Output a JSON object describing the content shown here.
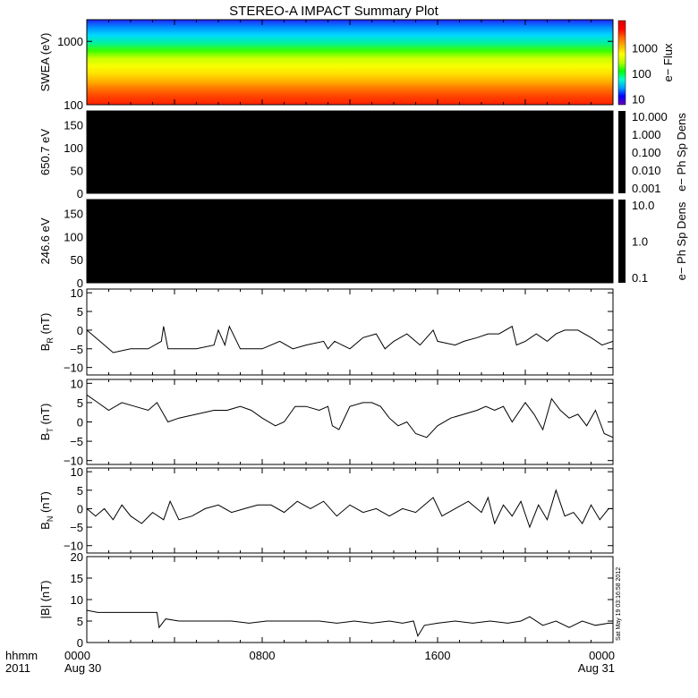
{
  "title": "STEREO-A IMPACT Summary Plot",
  "stamp": "Sat May 19 03:16:58 2012",
  "time_axis": {
    "row1": [
      "0000",
      "0800",
      "1600",
      "0000"
    ],
    "row2": [
      "Aug 30",
      "",
      "",
      "Aug 31"
    ],
    "corner_row1": "hhmm",
    "corner_row2": "2011",
    "range_hours": [
      0,
      24
    ],
    "tick_hours": [
      0,
      8,
      16,
      24
    ]
  },
  "chart_data": [
    {
      "type": "heatmap",
      "ylabel": "SWEA (eV)",
      "y_scale": "log",
      "ylim": [
        100,
        2200
      ],
      "y_ticks": [
        100,
        1000
      ],
      "y_tick_labels": [
        "100",
        "1000"
      ],
      "colorbar": {
        "label": "e− Flux",
        "scale": "log",
        "range": [
          6,
          12000
        ],
        "ticks": [
          10,
          100,
          1000
        ],
        "tick_labels": [
          "10",
          "100",
          "1000"
        ],
        "colormap": [
          "#6b00b2",
          "#0000ff",
          "#00a0ff",
          "#00ffc8",
          "#00ff00",
          "#b4ff00",
          "#ffff00",
          "#ffb400",
          "#ff6400",
          "#ff0000",
          "#dc0000"
        ]
      },
      "energy_bands_ev": [
        2200,
        1900,
        1500,
        1200,
        900,
        650,
        450,
        300,
        220,
        160,
        120,
        100
      ],
      "band_colors": [
        "#2222ff",
        "#0090ff",
        "#00d8ff",
        "#00f0a0",
        "#38ff00",
        "#c8ff00",
        "#f8ff00",
        "#ffe000",
        "#ffb000",
        "#ff7000",
        "#ff4000",
        "#ff2000"
      ]
    },
    {
      "type": "heatmap",
      "ylabel": "650.7 eV",
      "ylim": [
        0,
        180
      ],
      "y_ticks": [
        0,
        50,
        100,
        150
      ],
      "y_tick_labels": [
        "0",
        "50",
        "100",
        "150"
      ],
      "fill": "#000000",
      "colorbar": {
        "label": "e− Ph Sp Dens",
        "scale": "log",
        "ticks": [
          0.001,
          0.01,
          0.1,
          1.0,
          10.0
        ],
        "tick_labels": [
          "0.001",
          "0.010",
          "0.100",
          "1.000",
          "10.000"
        ],
        "fill": "#000000"
      }
    },
    {
      "type": "heatmap",
      "ylabel": "246.6 eV",
      "ylim": [
        0,
        180
      ],
      "y_ticks": [
        0,
        50,
        100,
        150
      ],
      "y_tick_labels": [
        "0",
        "50",
        "100",
        "150"
      ],
      "fill": "#000000",
      "colorbar": {
        "label": "e− Ph Sp Dens",
        "scale": "log",
        "ticks": [
          0.1,
          1.0,
          10.0
        ],
        "tick_labels": [
          "0.1",
          "1.0",
          "10.0"
        ],
        "fill": "#000000"
      }
    },
    {
      "type": "line",
      "ylabel": "B",
      "ylabel_sub": "R",
      "ylabel_unit": " (nT)",
      "ylim": [
        -12,
        11
      ],
      "y_ticks": [
        -10,
        -5,
        0,
        5,
        10
      ],
      "y_tick_labels": [
        "−10",
        "−5",
        "0",
        "5",
        "10"
      ],
      "x_hours": [
        0,
        0.6,
        1.2,
        2.0,
        2.8,
        3.4,
        3.5,
        3.7,
        4.2,
        5.0,
        5.8,
        6.0,
        6.3,
        6.5,
        7.0,
        7.6,
        8.0,
        8.8,
        9.4,
        10.0,
        10.8,
        11.0,
        11.3,
        12.0,
        12.6,
        13.2,
        13.6,
        14.0,
        14.6,
        15.2,
        15.8,
        16.0,
        16.8,
        17.2,
        17.8,
        18.3,
        18.8,
        19.4,
        19.6,
        20.0,
        20.5,
        21.0,
        21.4,
        21.8,
        22.4,
        23.0,
        23.5,
        24.0
      ],
      "values": [
        0,
        -3,
        -6,
        -5,
        -5,
        -3,
        1,
        -5,
        -5,
        -5,
        -4,
        0,
        -4,
        1,
        -5,
        -5,
        -5,
        -3,
        -5,
        -4,
        -3,
        -5,
        -3,
        -5,
        -2,
        -1,
        -5,
        -3,
        -1,
        -4,
        0,
        -3,
        -4,
        -3,
        -2,
        -1,
        -1,
        1,
        -4,
        -3,
        -1,
        -3,
        -1,
        0,
        0,
        -2,
        -4,
        -3
      ]
    },
    {
      "type": "line",
      "ylabel": "B",
      "ylabel_sub": "T",
      "ylabel_unit": " (nT)",
      "ylim": [
        -11,
        11
      ],
      "y_ticks": [
        -10,
        -5,
        0,
        5,
        10
      ],
      "y_tick_labels": [
        "−10",
        "−5",
        "0",
        "5",
        "10"
      ],
      "x_hours": [
        0,
        0.5,
        1.0,
        1.6,
        2.2,
        2.8,
        3.2,
        3.5,
        3.7,
        4.2,
        5.0,
        5.8,
        6.4,
        7.0,
        7.5,
        8.0,
        8.6,
        9.0,
        9.5,
        10.0,
        10.6,
        11.0,
        11.2,
        11.5,
        12.0,
        12.6,
        13.0,
        13.4,
        13.8,
        14.2,
        14.6,
        15.0,
        15.5,
        16.0,
        16.6,
        17.2,
        17.8,
        18.2,
        18.6,
        19.0,
        19.4,
        20.0,
        20.4,
        20.8,
        21.2,
        21.6,
        22.0,
        22.4,
        22.8,
        23.2,
        23.6,
        24.0
      ],
      "values": [
        7,
        5,
        3,
        5,
        4,
        3,
        5,
        2,
        0,
        1,
        2,
        3,
        3,
        4,
        3,
        1,
        -1,
        0,
        4,
        4,
        3,
        4,
        -1,
        -2,
        4,
        5,
        5,
        4,
        1,
        -1,
        0,
        -3,
        -4,
        -1,
        1,
        2,
        3,
        4,
        3,
        4,
        0,
        5,
        2,
        -2,
        6,
        3,
        1,
        2,
        -1,
        3,
        -3,
        -4
      ]
    },
    {
      "type": "line",
      "ylabel": "B",
      "ylabel_sub": "N",
      "ylabel_unit": " (nT)",
      "ylim": [
        -12,
        11
      ],
      "y_ticks": [
        -10,
        -5,
        0,
        5,
        10
      ],
      "y_tick_labels": [
        "−10",
        "−5",
        "0",
        "5",
        "10"
      ],
      "x_hours": [
        0,
        0.4,
        0.8,
        1.2,
        1.6,
        2.0,
        2.5,
        3.0,
        3.5,
        3.8,
        4.2,
        4.8,
        5.4,
        6.0,
        6.6,
        7.2,
        7.8,
        8.4,
        9.0,
        9.6,
        10.2,
        10.8,
        11.4,
        12.0,
        12.6,
        13.2,
        13.8,
        14.4,
        15.0,
        15.4,
        15.8,
        16.2,
        16.8,
        17.4,
        18.0,
        18.3,
        18.6,
        19.0,
        19.4,
        19.8,
        20.2,
        20.6,
        21.0,
        21.4,
        21.8,
        22.2,
        22.6,
        23.0,
        23.4,
        23.8,
        24.0
      ],
      "values": [
        0,
        -2,
        0,
        -3,
        1,
        -2,
        -4,
        -1,
        -3,
        2,
        -3,
        -2,
        0,
        1,
        -1,
        0,
        1,
        1,
        -1,
        2,
        0,
        2,
        -2,
        1,
        -1,
        0,
        -2,
        0,
        -1,
        1,
        3,
        -2,
        0,
        2,
        -1,
        3,
        -4,
        1,
        -2,
        2,
        -5,
        1,
        -3,
        5,
        -2,
        -1,
        -4,
        1,
        -3,
        0,
        0
      ]
    },
    {
      "type": "line",
      "ylabel": "|B| (nT)",
      "ylim": [
        0,
        20
      ],
      "y_ticks": [
        0,
        5,
        10,
        15,
        20
      ],
      "y_tick_labels": [
        "0",
        "5",
        "10",
        "15",
        "20"
      ],
      "x_hours": [
        0,
        0.5,
        1.0,
        1.6,
        2.2,
        2.8,
        3.2,
        3.3,
        3.6,
        4.2,
        5.0,
        5.8,
        6.6,
        7.4,
        8.2,
        9.0,
        9.8,
        10.6,
        11.4,
        12.2,
        13.0,
        13.8,
        14.4,
        14.9,
        15.1,
        15.4,
        16.0,
        16.8,
        17.6,
        18.4,
        19.2,
        19.8,
        20.2,
        20.8,
        21.4,
        22.0,
        22.6,
        23.2,
        23.8,
        24.0
      ],
      "values": [
        7.5,
        7,
        7,
        7,
        7,
        7,
        7,
        3.5,
        5.5,
        5,
        5,
        5,
        5,
        4.5,
        5,
        5,
        5,
        5,
        4.5,
        5,
        4.5,
        5,
        4.5,
        5,
        1.5,
        4,
        4.5,
        5,
        4.5,
        5,
        4.5,
        5,
        6,
        4,
        5,
        3.5,
        5,
        4,
        4.5,
        4.5
      ]
    }
  ]
}
